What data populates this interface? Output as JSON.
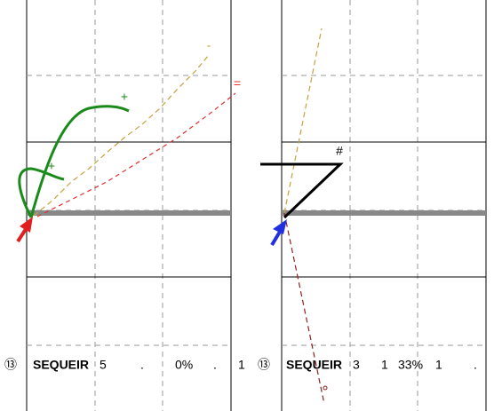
{
  "panels": [
    {
      "marks": [
        "+",
        "+",
        "-",
        "="
      ],
      "caption": [
        "⑬",
        "SEQUEIR",
        "5",
        ".",
        "0%",
        ".",
        "1"
      ]
    },
    {
      "marks": [
        "#"
      ],
      "caption": [
        "⑬",
        "SEQUEIR",
        "3",
        "1",
        "33%",
        "1",
        "."
      ]
    }
  ]
}
